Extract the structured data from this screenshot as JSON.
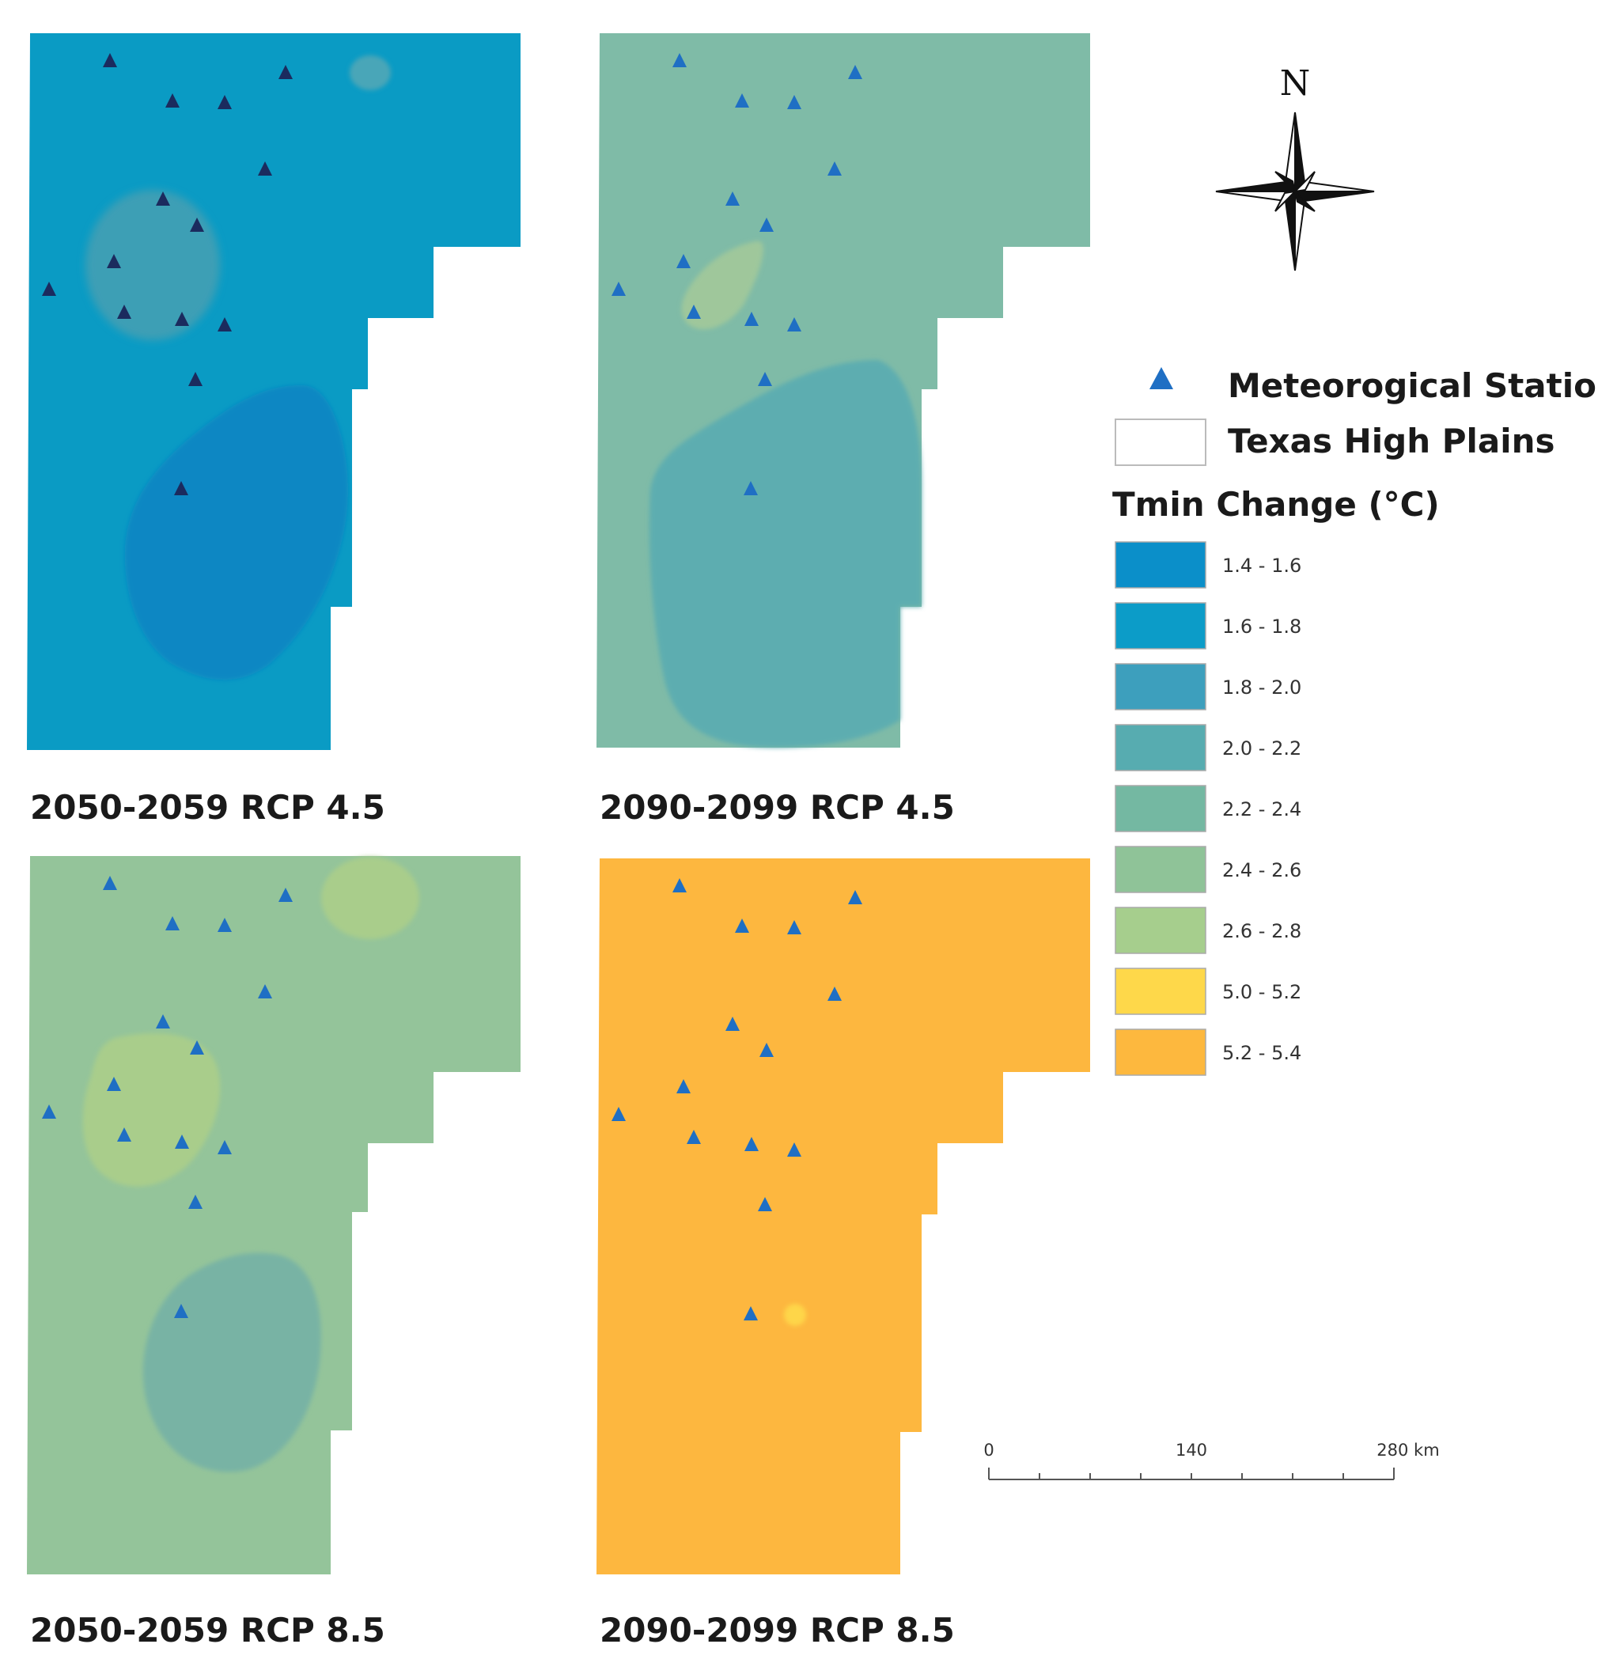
{
  "panels": [
    {
      "title": "2050-2059 RCP 4.5",
      "fill": "#0a9bc4",
      "marker": "#1b2b5e",
      "zones": [
        {
          "class": "1.8 - 2.0",
          "color": "#3e9fb5"
        },
        {
          "class": "1.4 - 1.6",
          "color": "#0a87c3"
        },
        {
          "class": "1.8 - 2.0",
          "color": "#4aa6b8"
        }
      ]
    },
    {
      "title": "2090-2099 RCP 4.5",
      "fill": "#7fbba7",
      "marker": "#1f6fc4",
      "zones": [
        {
          "class": "2.4 - 2.6",
          "color": "#9fc79b"
        },
        {
          "class": "2.0 - 2.2",
          "color": "#5dadb0"
        }
      ]
    },
    {
      "title": "2050-2059 RCP 8.5",
      "fill": "#94c49a",
      "marker": "#1f6fc4",
      "zones": [
        {
          "class": "2.6 - 2.8",
          "color": "#a9cd8b"
        },
        {
          "class": "2.6 - 2.8",
          "color": "#a9cd8b"
        },
        {
          "class": "2.2 - 2.4",
          "color": "#78b3a4"
        }
      ]
    },
    {
      "title": "2090-2099 RCP 8.5",
      "fill": "#fdb73f",
      "marker": "#1f6fc4",
      "zones": [
        {
          "class": "5.0 - 5.2",
          "color": "#fed64a"
        }
      ]
    }
  ],
  "legend": {
    "station_label": "Meteorogical Station",
    "region_label": "Texas High Plains",
    "title": "Tmin Change (°C)",
    "classes": [
      {
        "label": "1.4 - 1.6",
        "color": "#0b8fc9"
      },
      {
        "label": "1.6 - 1.8",
        "color": "#0c9cc8"
      },
      {
        "label": "1.8 - 2.0",
        "color": "#3d9fbd"
      },
      {
        "label": "2.0 - 2.2",
        "color": "#57acb0"
      },
      {
        "label": "2.2 - 2.4",
        "color": "#74b8a2"
      },
      {
        "label": "2.4 - 2.6",
        "color": "#8fc398"
      },
      {
        "label": "2.6 - 2.8",
        "color": "#a6ce8d"
      },
      {
        "label": "5.0 - 5.2",
        "color": "#fed84a"
      },
      {
        "label": "5.2 - 5.4",
        "color": "#fdb83e"
      }
    ]
  },
  "north_label": "N",
  "scale_bar": {
    "ticks": [
      "0",
      "140",
      "280 km"
    ]
  }
}
